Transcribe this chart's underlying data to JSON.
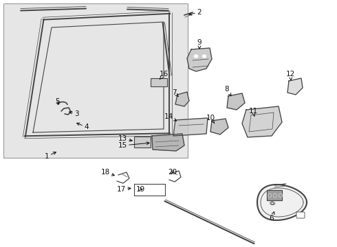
{
  "bg_color": "#ffffff",
  "dot_bg": "#e6e6e6",
  "line_color": "#444444",
  "label_color": "#111111",
  "font_size": 7.5,
  "border_color": "#999999",
  "figw": 4.9,
  "figh": 3.6,
  "dpi": 100
}
